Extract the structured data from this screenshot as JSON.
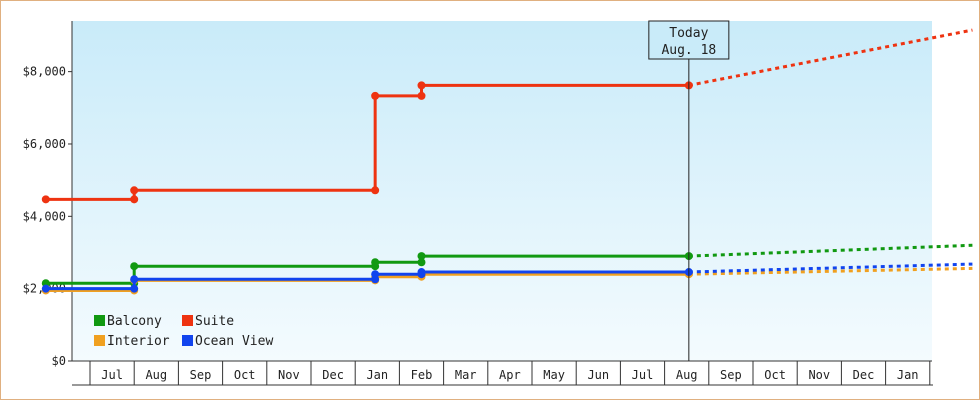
{
  "chart_data": {
    "type": "line",
    "subtype": "step",
    "x_axis": {
      "type": "month",
      "range": [
        "2017-06",
        "2019-02"
      ],
      "tick_labels": [
        "Jul",
        "Aug",
        "Sep",
        "Oct",
        "Nov",
        "Dec",
        "Jan",
        "Feb",
        "Mar",
        "Apr",
        "May",
        "Jun",
        "Jul",
        "Aug",
        "Sep",
        "Oct",
        "Nov",
        "Dec",
        "Jan"
      ]
    },
    "y_axis": {
      "ylim": [
        0,
        9400
      ],
      "ticks": [
        0,
        2000,
        4000,
        6000,
        8000
      ],
      "tick_labels": [
        "$0",
        "$2,000",
        "$4,000",
        "$6,000",
        "$8,000"
      ]
    },
    "today": {
      "date": "2018-08-18",
      "line1": "Today",
      "line2": "Aug. 18"
    },
    "legend": {
      "position": "bottom-left",
      "columns": 2
    },
    "grid": false,
    "series": [
      {
        "name": "Balcony",
        "color": "#119911",
        "points": [
          [
            "2017-06-01",
            2150
          ],
          [
            "2017-08-01",
            2150
          ],
          [
            "2017-08-01",
            2620
          ],
          [
            "2018-01-15",
            2620
          ],
          [
            "2018-01-15",
            2730
          ],
          [
            "2018-02-15",
            2730
          ],
          [
            "2018-02-15",
            2900
          ],
          [
            "2018-08-18",
            2900
          ]
        ],
        "forecast": [
          [
            "2018-08-18",
            2900
          ],
          [
            "2019-02-28",
            3200
          ]
        ]
      },
      {
        "name": "Suite",
        "color": "#ee3311",
        "points": [
          [
            "2017-06-01",
            4470
          ],
          [
            "2017-08-01",
            4470
          ],
          [
            "2017-08-01",
            4720
          ],
          [
            "2018-01-15",
            4720
          ],
          [
            "2018-01-15",
            7330
          ],
          [
            "2018-02-15",
            7330
          ],
          [
            "2018-02-15",
            7620
          ],
          [
            "2018-08-18",
            7620
          ]
        ],
        "forecast": [
          [
            "2018-08-18",
            7620
          ],
          [
            "2019-02-28",
            9150
          ]
        ]
      },
      {
        "name": "Interior",
        "color": "#f0a020",
        "points": [
          [
            "2017-06-01",
            1950
          ],
          [
            "2017-08-01",
            1950
          ],
          [
            "2017-08-01",
            2230
          ],
          [
            "2018-01-15",
            2230
          ],
          [
            "2018-01-15",
            2330
          ],
          [
            "2018-02-15",
            2330
          ],
          [
            "2018-02-15",
            2400
          ],
          [
            "2018-08-18",
            2400
          ]
        ],
        "forecast": [
          [
            "2018-08-18",
            2400
          ],
          [
            "2019-02-28",
            2560
          ]
        ]
      },
      {
        "name": "Ocean View",
        "color": "#1144ee",
        "points": [
          [
            "2017-06-01",
            2000
          ],
          [
            "2017-08-01",
            2000
          ],
          [
            "2017-08-01",
            2260
          ],
          [
            "2018-01-15",
            2260
          ],
          [
            "2018-01-15",
            2400
          ],
          [
            "2018-02-15",
            2400
          ],
          [
            "2018-02-15",
            2460
          ],
          [
            "2018-08-18",
            2460
          ]
        ],
        "forecast": [
          [
            "2018-08-18",
            2460
          ],
          [
            "2019-02-28",
            2680
          ]
        ]
      }
    ]
  }
}
